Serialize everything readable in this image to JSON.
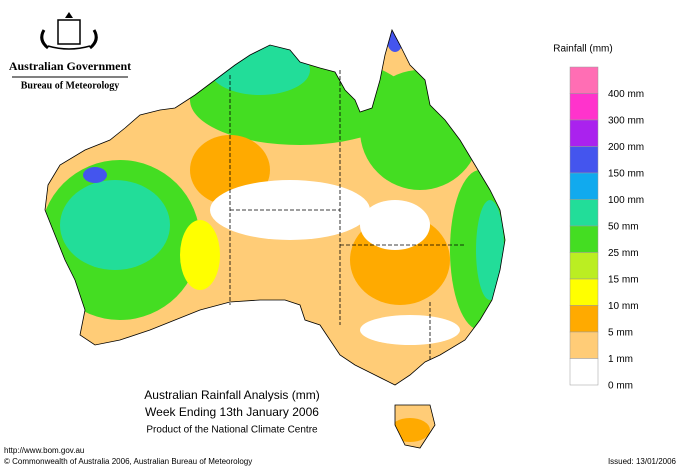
{
  "header": {
    "government": "Australian Government",
    "agency": "Bureau of Meteorology"
  },
  "title": {
    "line1": "Australian Rainfall Analysis (mm)",
    "line2": "Week Ending 13th January 2006",
    "line3": "Product of the National Climate Centre"
  },
  "legend": {
    "title": "Rainfall (mm)",
    "items": [
      {
        "label": "400 mm",
        "color": "#ff6eb4"
      },
      {
        "label": "300 mm",
        "color": "#ff33cc"
      },
      {
        "label": "200 mm",
        "color": "#aa22ee"
      },
      {
        "label": "150 mm",
        "color": "#4455ee"
      },
      {
        "label": "100 mm",
        "color": "#11aaee"
      },
      {
        "label": "50 mm",
        "color": "#22dd99"
      },
      {
        "label": "25 mm",
        "color": "#44dd22"
      },
      {
        "label": "15 mm",
        "color": "#bbee22"
      },
      {
        "label": "10 mm",
        "color": "#ffff00"
      },
      {
        "label": "5 mm",
        "color": "#ffaa00"
      },
      {
        "label": "1 mm",
        "color": "#ffcc77"
      },
      {
        "label": "0 mm",
        "color": "#ffffff"
      }
    ]
  },
  "footer": {
    "url": "http://www.bom.gov.au",
    "copyright": "© Commonwealth of Australia 2006, Australian Bureau of Meteorology",
    "issued": "Issued: 13/01/2006"
  }
}
